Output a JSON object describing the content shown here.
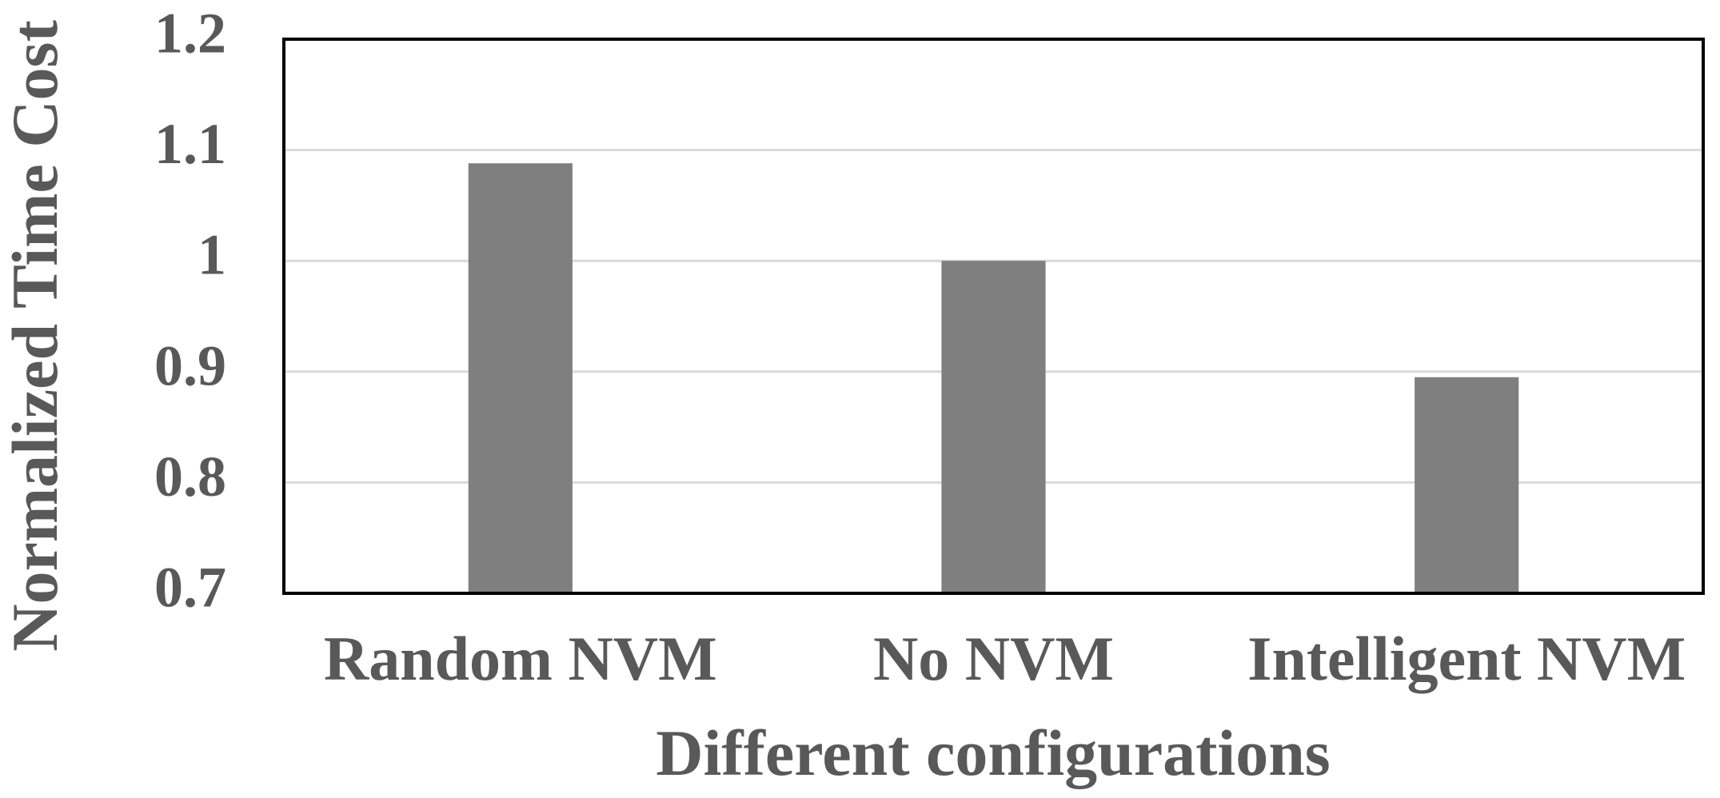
{
  "chart_data": {
    "type": "bar",
    "x_label": "Different configurations",
    "y_label": "Normalized Time Cost",
    "categories": [
      "Random NVM",
      "No NVM",
      "Intelligent NVM"
    ],
    "values": [
      1.088,
      1.0,
      0.895
    ],
    "color": "#7f7f7f",
    "ylim": [
      0.7,
      1.2
    ],
    "yticks": [
      0.7,
      0.8,
      0.9,
      1,
      1.1,
      1.2
    ],
    "grid": true
  }
}
